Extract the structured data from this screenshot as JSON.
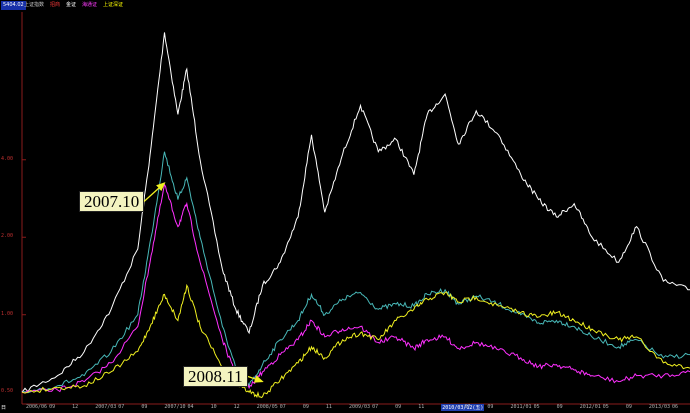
{
  "header": {
    "value_box": "5404.02",
    "items": [
      {
        "text": "上证指数",
        "color": "#c8c8c8"
      },
      {
        "text": "招商",
        "color": "#ff3b3b"
      },
      {
        "text": "金证",
        "color": "#ffffff"
      },
      {
        "text": "海通证",
        "color": "#ff3bff"
      },
      {
        "text": "上证深证",
        "color": "#ffff00"
      }
    ]
  },
  "annotations": [
    {
      "label": "2007.10"
    },
    {
      "label": "2008.11"
    }
  ],
  "bottom_axis": {
    "corner": "日",
    "ticks": [
      {
        "label": "2006/06",
        "hl": false
      },
      {
        "label": "09",
        "hl": false
      },
      {
        "label": "12",
        "hl": false
      },
      {
        "label": "2007/03",
        "hl": false
      },
      {
        "label": "07",
        "hl": false
      },
      {
        "label": "09",
        "hl": false
      },
      {
        "label": "2007/10",
        "hl": false
      },
      {
        "label": "04",
        "hl": false
      },
      {
        "label": "10",
        "hl": false
      },
      {
        "label": "12",
        "hl": false
      },
      {
        "label": "2008/05",
        "hl": false
      },
      {
        "label": "07",
        "hl": false
      },
      {
        "label": "09",
        "hl": false
      },
      {
        "label": "11",
        "hl": false
      },
      {
        "label": "2009/03",
        "hl": false
      },
      {
        "label": "07",
        "hl": false
      },
      {
        "label": "09",
        "hl": false
      },
      {
        "label": "11",
        "hl": false
      },
      {
        "label": "2010/03/12(五)",
        "hl": true
      },
      {
        "label": "07",
        "hl": false
      },
      {
        "label": "09",
        "hl": false
      },
      {
        "label": "2011/01",
        "hl": false
      },
      {
        "label": "05",
        "hl": false
      },
      {
        "label": "09",
        "hl": false
      },
      {
        "label": "2012/01",
        "hl": false
      },
      {
        "label": "05",
        "hl": false
      },
      {
        "label": "09",
        "hl": false
      },
      {
        "label": "2013/03",
        "hl": false
      },
      {
        "label": "06",
        "hl": false
      }
    ]
  },
  "chart_data": {
    "type": "line",
    "y_scale": "log",
    "x_range": [
      2006.2,
      2013.7
    ],
    "y_range": [
      0.45,
      15
    ],
    "y_tick_labels": [
      {
        "label": "4.00",
        "value": 4.0
      },
      {
        "label": "2.00",
        "value": 2.0
      },
      {
        "label": "1.00",
        "value": 1.0
      },
      {
        "label": "0.50",
        "value": 0.5
      }
    ],
    "annotations": [
      {
        "label": "2007.10",
        "x": 2007.8,
        "y": 3.25
      },
      {
        "label": "2008.11",
        "x": 2008.9,
        "y": 0.55
      }
    ],
    "series": [
      {
        "color": "#ffffff",
        "points": [
          [
            2006.2,
            0.5
          ],
          [
            2006.6,
            0.58
          ],
          [
            2006.9,
            0.72
          ],
          [
            2007.2,
            1.05
          ],
          [
            2007.5,
            1.8
          ],
          [
            2007.65,
            4.5
          ],
          [
            2007.8,
            12.5
          ],
          [
            2007.95,
            6.0
          ],
          [
            2008.05,
            9.0
          ],
          [
            2008.2,
            4.0
          ],
          [
            2008.45,
            1.5
          ],
          [
            2008.6,
            1.05
          ],
          [
            2008.75,
            0.85
          ],
          [
            2008.9,
            1.3
          ],
          [
            2009.1,
            1.6
          ],
          [
            2009.3,
            2.4
          ],
          [
            2009.45,
            5.0
          ],
          [
            2009.6,
            2.5
          ],
          [
            2009.8,
            4.2
          ],
          [
            2010.0,
            6.5
          ],
          [
            2010.2,
            4.3
          ],
          [
            2010.4,
            4.8
          ],
          [
            2010.6,
            3.5
          ],
          [
            2010.75,
            6.0
          ],
          [
            2010.95,
            7.2
          ],
          [
            2011.1,
            4.6
          ],
          [
            2011.3,
            6.2
          ],
          [
            2011.55,
            5.0
          ],
          [
            2011.8,
            3.5
          ],
          [
            2012.0,
            2.8
          ],
          [
            2012.2,
            2.4
          ],
          [
            2012.4,
            2.7
          ],
          [
            2012.6,
            2.0
          ],
          [
            2012.9,
            1.6
          ],
          [
            2013.1,
            2.2
          ],
          [
            2013.4,
            1.35
          ],
          [
            2013.7,
            1.25
          ]
        ]
      },
      {
        "color": "#48b8b8",
        "points": [
          [
            2006.2,
            0.5
          ],
          [
            2006.6,
            0.53
          ],
          [
            2006.9,
            0.58
          ],
          [
            2007.2,
            0.72
          ],
          [
            2007.5,
            1.0
          ],
          [
            2007.65,
            2.0
          ],
          [
            2007.8,
            4.3
          ],
          [
            2007.95,
            2.8
          ],
          [
            2008.05,
            3.4
          ],
          [
            2008.2,
            2.0
          ],
          [
            2008.45,
            0.9
          ],
          [
            2008.6,
            0.62
          ],
          [
            2008.75,
            0.53
          ],
          [
            2008.9,
            0.64
          ],
          [
            2009.1,
            0.8
          ],
          [
            2009.3,
            0.95
          ],
          [
            2009.45,
            1.2
          ],
          [
            2009.6,
            1.0
          ],
          [
            2009.8,
            1.15
          ],
          [
            2010.0,
            1.22
          ],
          [
            2010.2,
            1.05
          ],
          [
            2010.4,
            1.1
          ],
          [
            2010.6,
            1.08
          ],
          [
            2010.75,
            1.2
          ],
          [
            2010.95,
            1.25
          ],
          [
            2011.1,
            1.1
          ],
          [
            2011.3,
            1.18
          ],
          [
            2011.55,
            1.1
          ],
          [
            2011.8,
            1.0
          ],
          [
            2012.0,
            0.93
          ],
          [
            2012.2,
            0.95
          ],
          [
            2012.4,
            0.9
          ],
          [
            2012.6,
            0.82
          ],
          [
            2012.9,
            0.75
          ],
          [
            2013.1,
            0.8
          ],
          [
            2013.4,
            0.68
          ],
          [
            2013.7,
            0.7
          ]
        ]
      },
      {
        "color": "#ff30ff",
        "points": [
          [
            2006.2,
            0.5
          ],
          [
            2006.6,
            0.51
          ],
          [
            2006.9,
            0.55
          ],
          [
            2007.2,
            0.65
          ],
          [
            2007.5,
            0.9
          ],
          [
            2007.65,
            1.7
          ],
          [
            2007.8,
            3.2
          ],
          [
            2007.95,
            2.2
          ],
          [
            2008.05,
            2.7
          ],
          [
            2008.2,
            1.6
          ],
          [
            2008.45,
            0.8
          ],
          [
            2008.6,
            0.58
          ],
          [
            2008.75,
            0.52
          ],
          [
            2008.9,
            0.6
          ],
          [
            2009.1,
            0.7
          ],
          [
            2009.3,
            0.8
          ],
          [
            2009.45,
            0.95
          ],
          [
            2009.6,
            0.82
          ],
          [
            2009.8,
            0.88
          ],
          [
            2010.0,
            0.9
          ],
          [
            2010.2,
            0.78
          ],
          [
            2010.4,
            0.82
          ],
          [
            2010.6,
            0.74
          ],
          [
            2010.75,
            0.8
          ],
          [
            2010.95,
            0.82
          ],
          [
            2011.1,
            0.74
          ],
          [
            2011.3,
            0.78
          ],
          [
            2011.55,
            0.73
          ],
          [
            2011.8,
            0.68
          ],
          [
            2012.0,
            0.63
          ],
          [
            2012.2,
            0.64
          ],
          [
            2012.4,
            0.61
          ],
          [
            2012.6,
            0.58
          ],
          [
            2012.9,
            0.55
          ],
          [
            2013.1,
            0.58
          ],
          [
            2013.4,
            0.58
          ],
          [
            2013.7,
            0.6
          ]
        ]
      },
      {
        "color": "#f0f020",
        "points": [
          [
            2006.2,
            0.5
          ],
          [
            2006.6,
            0.52
          ],
          [
            2006.9,
            0.53
          ],
          [
            2007.2,
            0.6
          ],
          [
            2007.5,
            0.72
          ],
          [
            2007.65,
            0.92
          ],
          [
            2007.8,
            1.2
          ],
          [
            2007.95,
            0.95
          ],
          [
            2008.05,
            1.3
          ],
          [
            2008.2,
            0.9
          ],
          [
            2008.45,
            0.62
          ],
          [
            2008.6,
            0.55
          ],
          [
            2008.75,
            0.5
          ],
          [
            2008.9,
            0.48
          ],
          [
            2009.1,
            0.56
          ],
          [
            2009.3,
            0.65
          ],
          [
            2009.45,
            0.75
          ],
          [
            2009.6,
            0.68
          ],
          [
            2009.8,
            0.8
          ],
          [
            2010.0,
            0.85
          ],
          [
            2010.2,
            0.8
          ],
          [
            2010.4,
            0.95
          ],
          [
            2010.6,
            1.05
          ],
          [
            2010.75,
            1.15
          ],
          [
            2010.95,
            1.22
          ],
          [
            2011.1,
            1.12
          ],
          [
            2011.3,
            1.17
          ],
          [
            2011.55,
            1.08
          ],
          [
            2011.8,
            1.02
          ],
          [
            2012.0,
            0.98
          ],
          [
            2012.2,
            1.02
          ],
          [
            2012.4,
            0.95
          ],
          [
            2012.6,
            0.88
          ],
          [
            2012.9,
            0.8
          ],
          [
            2013.1,
            0.82
          ],
          [
            2013.4,
            0.65
          ],
          [
            2013.7,
            0.62
          ]
        ]
      }
    ]
  }
}
